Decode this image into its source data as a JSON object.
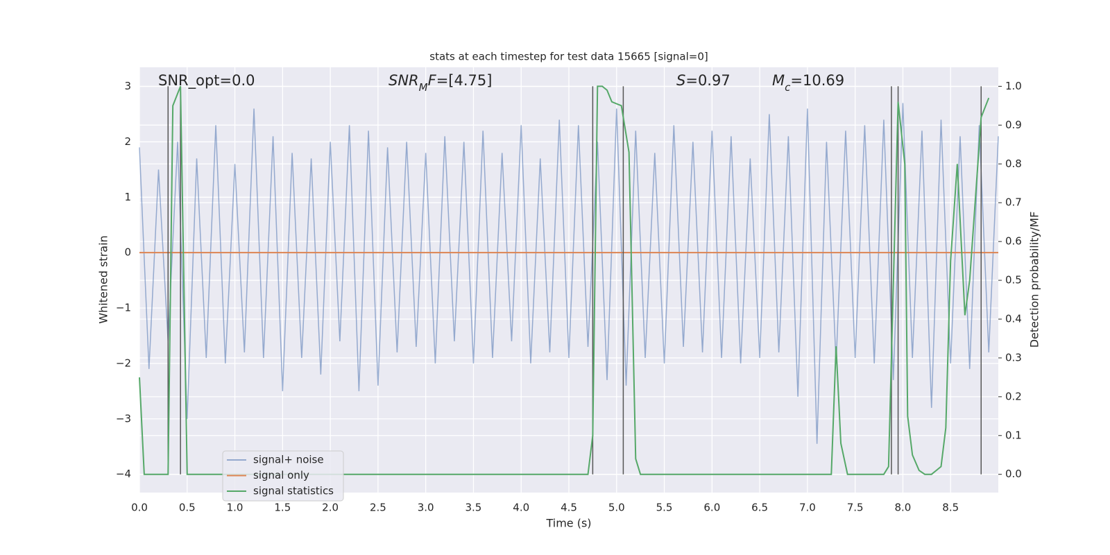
{
  "chart_data": {
    "type": "line",
    "title": "stats at each timestep for test data 15665 [signal=0]",
    "xlabel": "Time (s)",
    "ylabel": "Whitened strain",
    "y2label": "Detection probability/MF",
    "annotations": [
      [
        {
          "text": "SNR_opt=0.0",
          "style": "normal"
        }
      ],
      [
        {
          "text": "SNR",
          "style": "italic"
        },
        {
          "text": "M",
          "style": "italic-sub"
        },
        {
          "text": "F",
          "style": "italic"
        },
        {
          "text": "=[4.75]",
          "style": "normal"
        }
      ],
      [
        {
          "text": "S",
          "style": "italic"
        },
        {
          "text": "=0.97",
          "style": "normal"
        }
      ],
      [
        {
          "text": "M",
          "style": "italic"
        },
        {
          "text": "c",
          "style": "italic-sub"
        },
        {
          "text": "=10.69",
          "style": "normal"
        }
      ]
    ],
    "xlim": [
      0,
      9.0
    ],
    "ylim": [
      -4.33,
      3.345
    ],
    "y2lim": [
      -0.047,
      1.049
    ],
    "xticks": [
      {
        "value": 0,
        "label": "0.0"
      },
      0.5,
      {
        "value": 1,
        "label": "1.0"
      },
      1.5,
      {
        "value": 2,
        "label": "2.0"
      },
      2.5,
      {
        "value": 3,
        "label": "3.0"
      },
      3.5,
      {
        "value": 4,
        "label": "4.0"
      },
      4.5,
      {
        "value": 5,
        "label": "5.0"
      },
      5.5,
      {
        "value": 6,
        "label": "6.0"
      },
      6.5,
      {
        "value": 7,
        "label": "7.0"
      },
      7.5,
      {
        "value": 8,
        "label": "8.0"
      },
      8.5
    ],
    "yticks": [
      {
        "value": -4,
        "label": "−4"
      },
      {
        "value": -3,
        "label": "−3"
      },
      {
        "value": -2,
        "label": "−2"
      },
      {
        "value": -1,
        "label": "−1"
      },
      0,
      1,
      2,
      3
    ],
    "y2ticks": [
      {
        "value": 0,
        "label": "0.0"
      },
      0.1,
      0.2,
      0.3,
      0.4,
      0.5,
      0.6,
      0.7,
      0.8,
      0.9,
      {
        "value": 1,
        "label": "1.0"
      }
    ],
    "grid": true,
    "legend": "lower left",
    "vlines": [
      0.3,
      0.43,
      4.75,
      5.07,
      7.88,
      7.95,
      8.82
    ],
    "vline_span": [
      0,
      1
    ],
    "vline_color": "#555555",
    "series": [
      {
        "name": "signal+ noise",
        "color": "#4c72b0",
        "x": [
          0.0,
          0.1,
          0.2,
          0.3,
          0.4,
          0.5,
          0.6,
          0.7,
          0.8,
          0.9,
          1.0,
          1.1,
          1.2,
          1.3,
          1.4,
          1.5,
          1.6,
          1.7,
          1.8,
          1.9,
          2.0,
          2.1,
          2.2,
          2.3,
          2.4,
          2.5,
          2.6,
          2.7,
          2.8,
          2.9,
          3.0,
          3.1,
          3.2,
          3.3,
          3.4,
          3.5,
          3.6,
          3.7,
          3.8,
          3.9,
          4.0,
          4.1,
          4.2,
          4.3,
          4.4,
          4.5,
          4.6,
          4.7,
          4.8,
          4.9,
          5.0,
          5.1,
          5.2,
          5.3,
          5.4,
          5.5,
          5.6,
          5.7,
          5.8,
          5.9,
          6.0,
          6.1,
          6.2,
          6.3,
          6.4,
          6.5,
          6.6,
          6.7,
          6.8,
          6.9,
          7.0,
          7.1,
          7.2,
          7.3,
          7.4,
          7.5,
          7.6,
          7.7,
          7.8,
          7.9,
          8.0,
          8.1,
          8.2,
          8.3,
          8.4,
          8.5,
          8.6,
          8.7,
          8.8,
          8.9,
          9.0
        ],
        "values": [
          1.9,
          -2.1,
          1.5,
          -1.6,
          2.0,
          -3.0,
          1.7,
          -1.9,
          2.3,
          -2.0,
          1.6,
          -1.8,
          2.6,
          -1.9,
          2.1,
          -2.5,
          1.8,
          -1.9,
          1.7,
          -2.2,
          2.0,
          -1.6,
          2.3,
          -2.5,
          2.2,
          -2.4,
          1.9,
          -1.8,
          2.0,
          -1.7,
          1.8,
          -2.0,
          2.1,
          -1.6,
          2.0,
          -2.0,
          2.2,
          -1.9,
          1.8,
          -1.6,
          2.3,
          -2.0,
          1.7,
          -1.8,
          2.4,
          -1.9,
          2.3,
          -1.7,
          2.0,
          -2.3,
          2.6,
          -2.4,
          2.2,
          -1.9,
          1.8,
          -2.0,
          2.3,
          -1.7,
          2.0,
          -1.8,
          2.2,
          -1.9,
          2.1,
          -2.0,
          1.7,
          -1.9,
          2.5,
          -1.8,
          2.1,
          -2.6,
          2.6,
          -3.45,
          2.0,
          -2.0,
          2.2,
          -1.9,
          2.3,
          -2.0,
          2.4,
          -2.3,
          2.7,
          -1.9,
          2.2,
          -2.8,
          2.4,
          -2.0,
          2.1,
          -2.1,
          2.3,
          -1.8,
          2.1
        ]
      },
      {
        "name": "signal only",
        "color": "#dd8452",
        "x": [
          0.0,
          9.0
        ],
        "values": [
          0,
          0
        ]
      },
      {
        "name": "signal statistics",
        "color": "#55a868",
        "axis": "y2",
        "x": [
          0.0,
          0.05,
          0.15,
          0.3,
          0.35,
          0.43,
          0.5,
          0.6,
          4.5,
          4.7,
          4.75,
          4.8,
          4.85,
          4.9,
          4.95,
          5.05,
          5.13,
          5.2,
          5.25,
          7.25,
          7.3,
          7.35,
          7.42,
          7.8,
          7.85,
          7.95,
          8.02,
          8.05,
          8.1,
          8.17,
          8.23,
          8.3,
          8.35,
          8.4,
          8.45,
          8.5,
          8.57,
          8.65,
          8.7,
          8.82,
          8.9
        ],
        "values": [
          0.25,
          0.0,
          0.0,
          0.0,
          0.95,
          1.0,
          0.0,
          0.0,
          0.0,
          0.0,
          0.1,
          1.0,
          1.0,
          0.99,
          0.96,
          0.95,
          0.83,
          0.04,
          0.0,
          0.0,
          0.33,
          0.08,
          0.0,
          0.0,
          0.02,
          0.96,
          0.8,
          0.15,
          0.05,
          0.01,
          0.0,
          0.0,
          0.01,
          0.02,
          0.12,
          0.55,
          0.8,
          0.41,
          0.5,
          0.92,
          0.97
        ]
      }
    ]
  }
}
